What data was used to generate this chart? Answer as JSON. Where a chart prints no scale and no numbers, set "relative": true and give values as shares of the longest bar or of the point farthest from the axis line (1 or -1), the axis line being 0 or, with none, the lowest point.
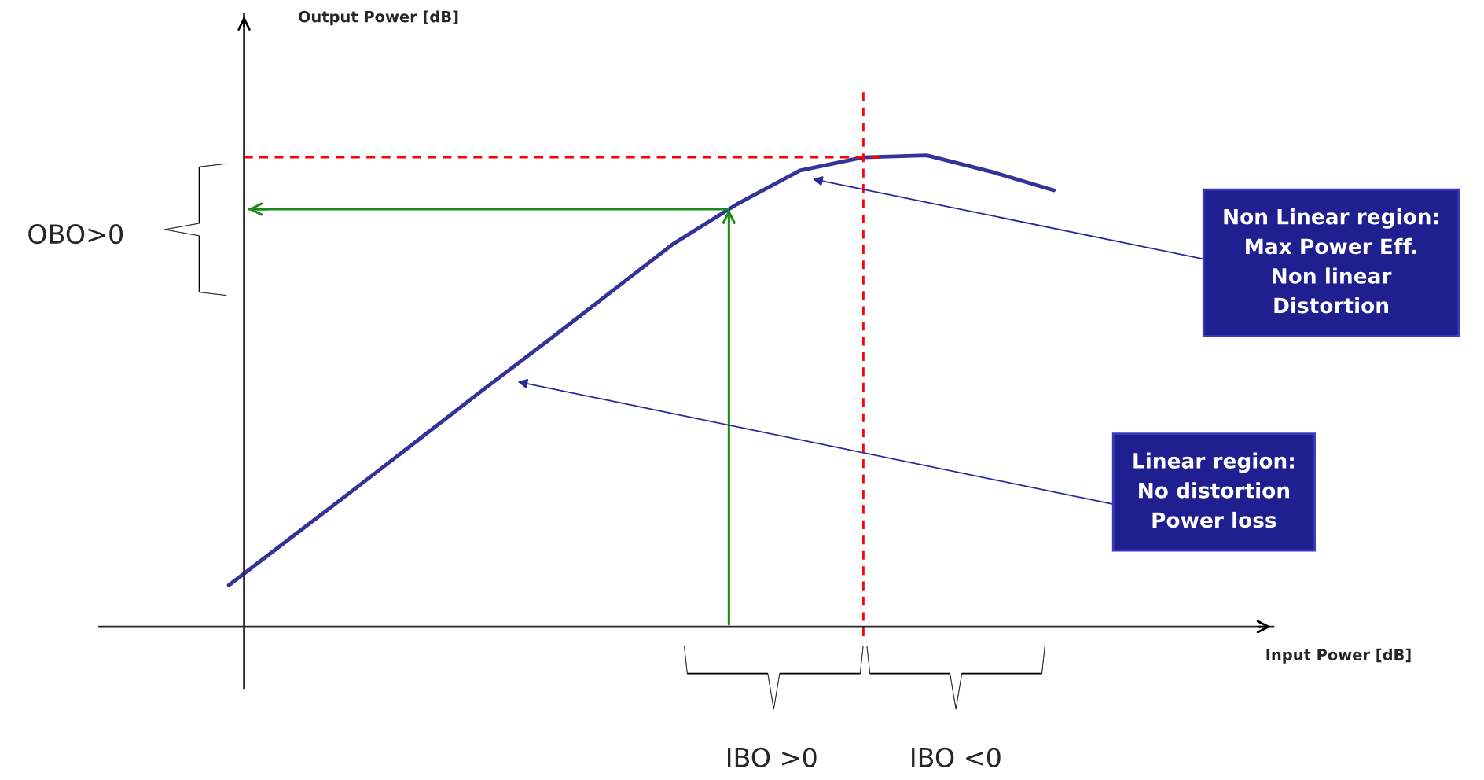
{
  "chart_data": {
    "type": "line",
    "relative": true,
    "categories": [
      null,
      null,
      null,
      null,
      null,
      null,
      null,
      null,
      null,
      null,
      null,
      null,
      null,
      null
    ],
    "series": [
      {
        "color": "#333399",
        "values": [
          0.088,
          0.191,
          0.294,
          0.398,
          0.502,
          0.604,
          0.708,
          0.812,
          0.896,
          0.968,
          0.996,
          1.0,
          0.966,
          0.926
        ]
      }
    ],
    "ref_lines": [
      {
        "axis": "y",
        "value": 0.996,
        "color": "#ff0000",
        "line_style": "dashed"
      },
      {
        "axis": "y",
        "value": 0.886,
        "color": "#1a8a1a",
        "line_style": "solid"
      }
    ],
    "annotations": [
      "Non Linear region:\nMax Power Eff.\nNon linear\nDistortion",
      "Linear region:\nNo distortion\nPower loss",
      "OBO>0",
      "IBO >0",
      "IBO <0",
      "Output Power [dB]",
      "Input Power [dB]"
    ]
  }
}
